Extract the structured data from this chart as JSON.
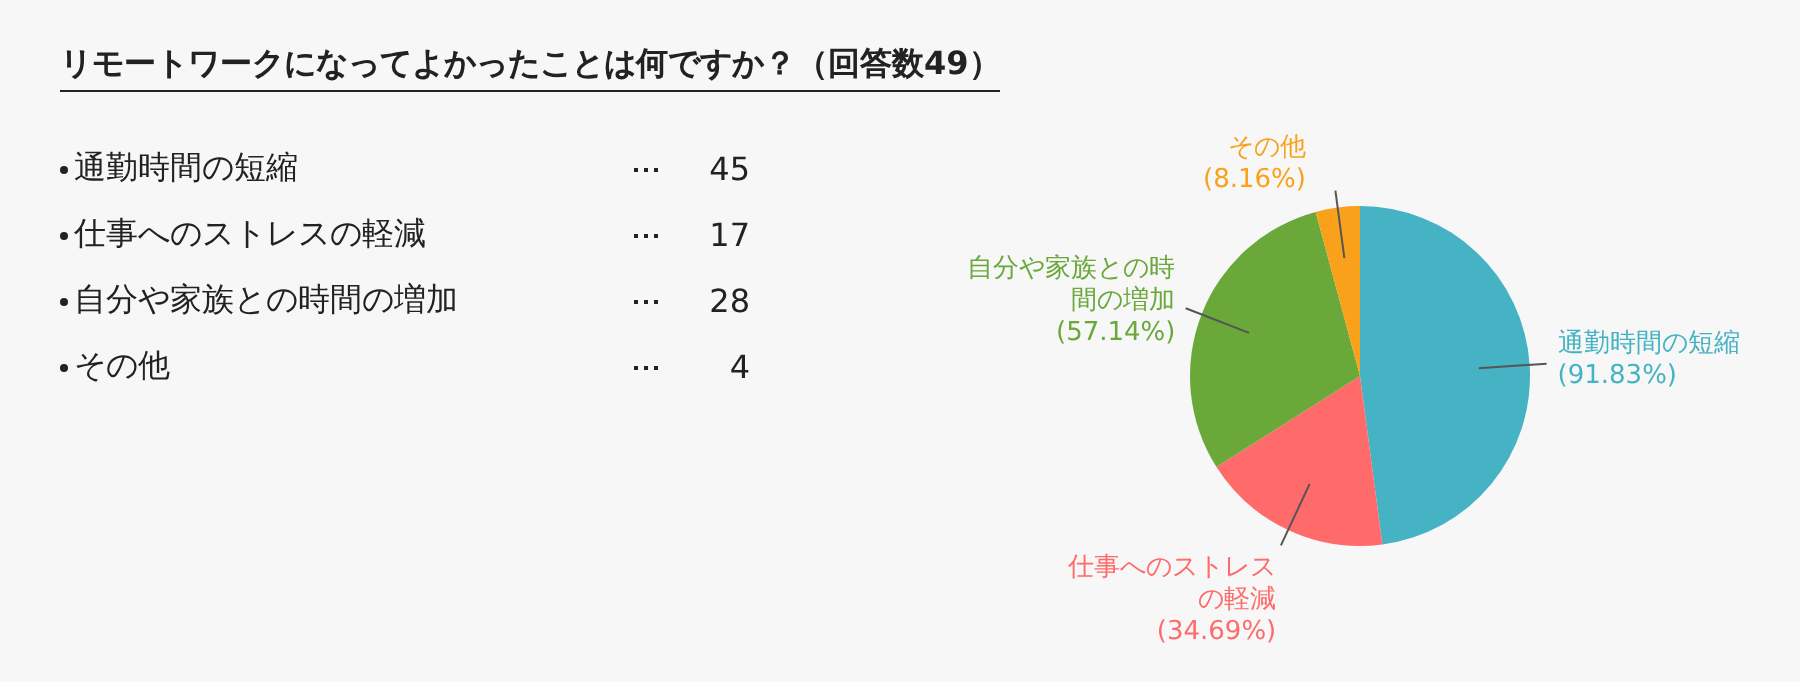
{
  "chart_data": [
    {
      "type": "other",
      "title": "リモートワークになってよかったことは何ですか？（回答数49）",
      "categories": [
        "通勤時間の短縮",
        "仕事へのストレスの軽減",
        "自分や家族との時間の増加",
        "その他"
      ],
      "values": [
        45,
        17,
        28,
        4
      ],
      "data_labels": true
    },
    {
      "type": "pie",
      "categories": [
        "通勤時間の短縮",
        "仕事へのストレスの軽減",
        "自分や家族との時間の増加",
        "その他"
      ],
      "values": [
        47.9,
        18.1,
        29.8,
        4.2
      ],
      "colors": [
        "#45b3c3",
        "#ff6b6b",
        "#6aa83a",
        "#f9a11b"
      ],
      "annotations": [
        {
          "text": "(91.83%)",
          "x": "通勤時間の短縮"
        },
        {
          "text": "(34.69%)",
          "x": "仕事へのストレスの軽減"
        },
        {
          "text": "(57.14%)",
          "x": "自分や家族との時間の増加"
        },
        {
          "text": "(8.16%)",
          "x": "その他"
        }
      ],
      "legend": false
    }
  ]
}
